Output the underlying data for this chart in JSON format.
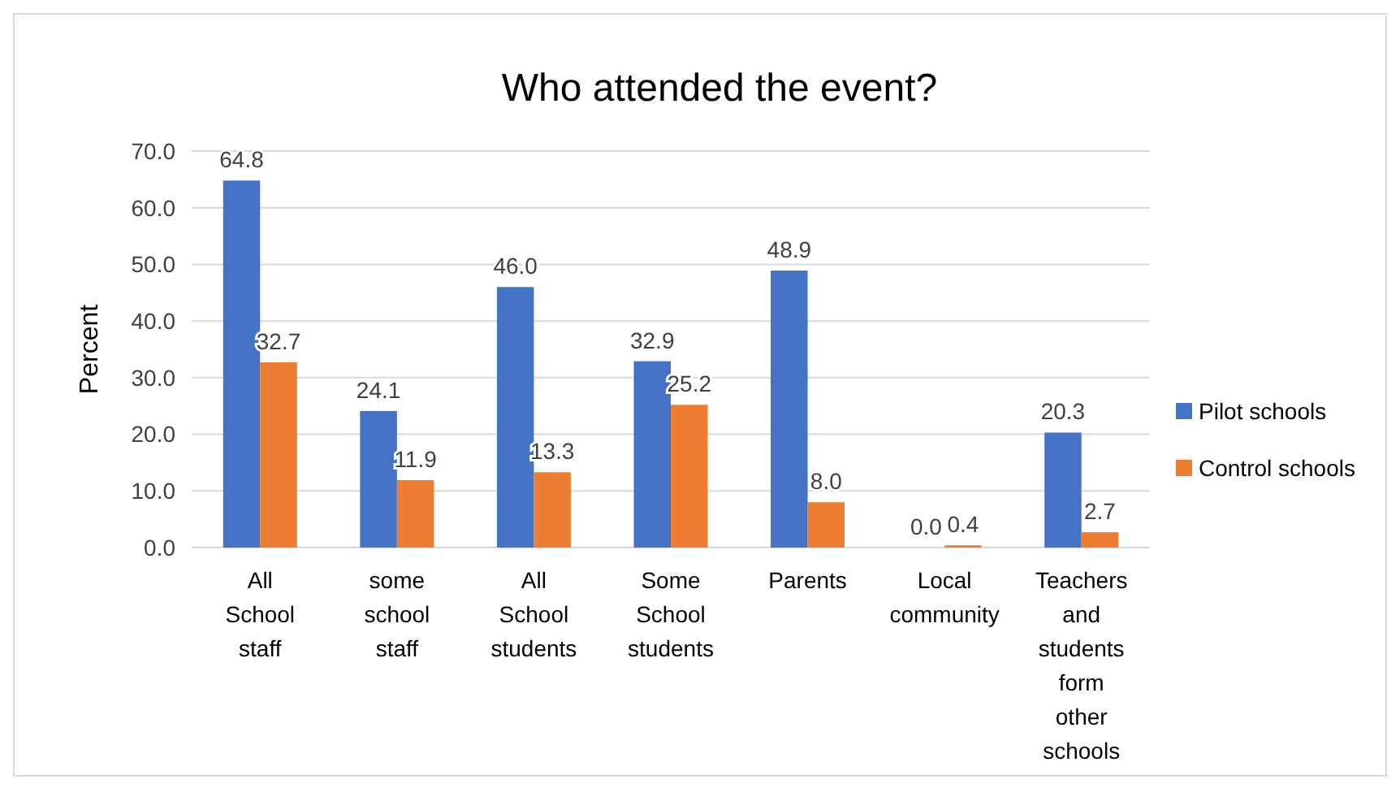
{
  "chart_data": {
    "type": "bar",
    "title": "Who attended the event?",
    "ylabel": "Percent",
    "categories": [
      "All School staff",
      "some school staff",
      "All School students",
      "Some School students",
      "Parents",
      "Local community",
      "Teachers and students form other schools"
    ],
    "series": [
      {
        "name": "Pilot schools",
        "color": "#4472c4",
        "values": [
          64.8,
          24.1,
          46.0,
          32.9,
          48.9,
          0.0,
          20.3
        ],
        "value_labels": [
          "64.8",
          "24.1",
          "46.0",
          "32.9",
          "48.9",
          "0.0",
          "20.3"
        ]
      },
      {
        "name": "Control schools",
        "color": "#ed7d31",
        "values": [
          32.7,
          11.9,
          13.3,
          25.2,
          8.0,
          0.4,
          2.7
        ],
        "value_labels": [
          "32.7",
          "11.9",
          "13.3",
          "25.2",
          "8.0",
          "0.4",
          "2.7"
        ]
      }
    ],
    "ylim": [
      0,
      70
    ],
    "yticks": [
      {
        "value": 0,
        "label": "0.0"
      },
      {
        "value": 10,
        "label": "10.0"
      },
      {
        "value": 20,
        "label": "20.0"
      },
      {
        "value": 30,
        "label": "30.0"
      },
      {
        "value": 40,
        "label": "40.0"
      },
      {
        "value": 50,
        "label": "50.0"
      },
      {
        "value": 60,
        "label": "60.0"
      },
      {
        "value": 70,
        "label": "70.0"
      }
    ],
    "grid": "y",
    "legend": "right"
  }
}
